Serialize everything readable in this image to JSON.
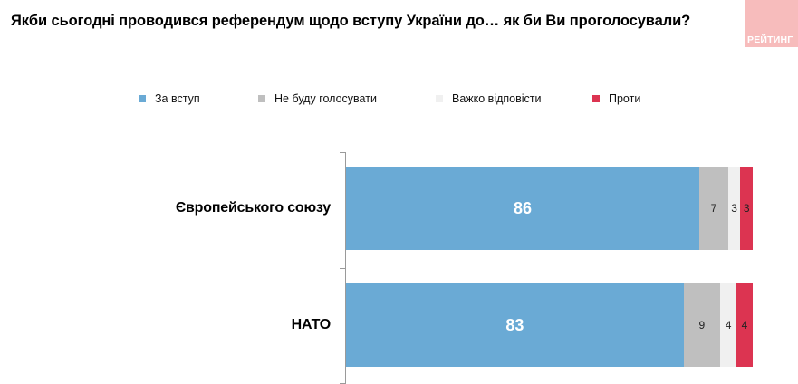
{
  "title": "Якби сьогодні проводився референдум щодо вступу України до… як би Ви проголосували?",
  "logo": "РЕЙТИНГ",
  "chart_data": {
    "type": "bar",
    "orientation": "horizontal",
    "stacked": true,
    "categories": [
      "Європейського союзу",
      "НАТО"
    ],
    "series": [
      {
        "name": "За вступ",
        "color": "#6aaad5",
        "values": [
          86,
          83
        ]
      },
      {
        "name": "Не буду голосувати",
        "color": "#bfbfbf",
        "values": [
          7,
          9
        ]
      },
      {
        "name": "Важко відповісти",
        "color": "#f0f0f0",
        "values": [
          3,
          4
        ]
      },
      {
        "name": "Проти",
        "color": "#dc3451",
        "values": [
          3,
          4
        ]
      }
    ],
    "legend_position": "top",
    "title": "Якби сьогодні проводився референдум щодо вступу України до… як би Ви проголосували?",
    "xlabel": "",
    "ylabel": ""
  }
}
